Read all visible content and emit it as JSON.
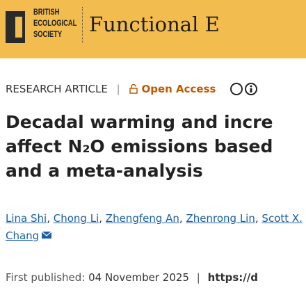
{
  "header": {
    "society": [
      "BRITISH",
      "ECOLOGICAL",
      "SOCIETY"
    ],
    "journal": "Functional E"
  },
  "article_meta": {
    "type": "RESEARCH ARTICLE",
    "separator": "|",
    "access": "Open Access"
  },
  "title_lines": [
    "Decadal warming and incre",
    "affect N₂O emissions based",
    "and a meta-analysis"
  ],
  "authors": [
    "Lina Shi",
    "Chong Li",
    "Zhengfeng An",
    "Zhenrong Lin",
    "Scott X. Chang"
  ],
  "author_separator": ",",
  "published": {
    "label": "First published:",
    "date": "04 November 2025",
    "separator": "|",
    "doi": "https://d"
  }
}
